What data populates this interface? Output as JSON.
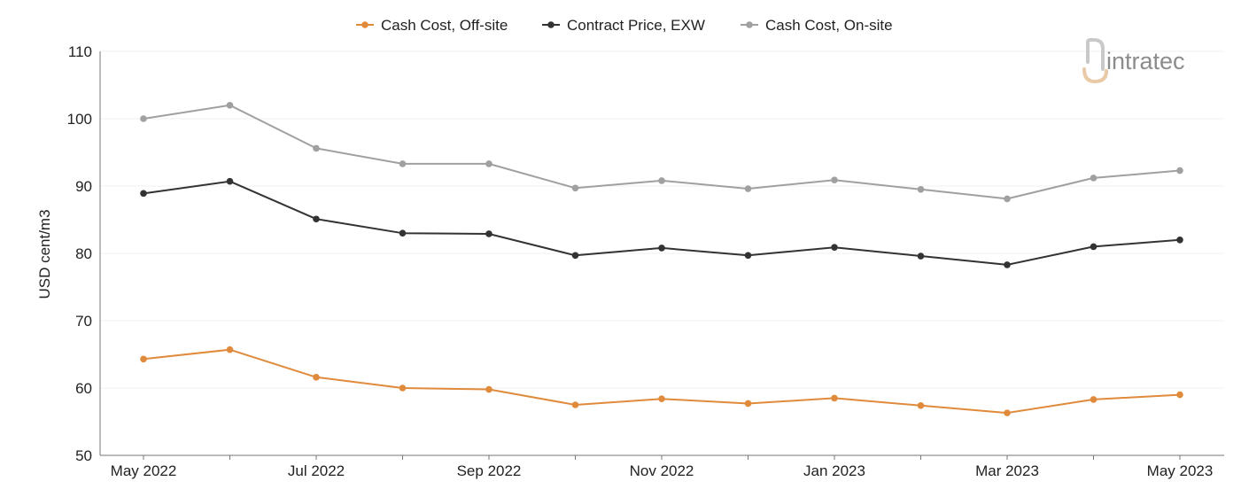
{
  "logo": {
    "text": "intratec"
  },
  "chart_data": {
    "type": "line",
    "ylabel": "USD cent/m3",
    "xlabel": "",
    "ylim": [
      50,
      110
    ],
    "yticks": [
      50,
      60,
      70,
      80,
      90,
      100,
      110
    ],
    "x": [
      "May 2022",
      "Jun 2022",
      "Jul 2022",
      "Aug 2022",
      "Sep 2022",
      "Oct 2022",
      "Nov 2022",
      "Dec 2022",
      "Jan 2023",
      "Feb 2023",
      "Mar 2023",
      "Apr 2023",
      "May 2023"
    ],
    "xtick_labels": [
      "May 2022",
      "",
      "Jul 2022",
      "",
      "Sep 2022",
      "",
      "Nov 2022",
      "",
      "Jan 2023",
      "",
      "Mar 2023",
      "",
      "May 2023"
    ],
    "grid": true,
    "legend_position": "top-center",
    "series": [
      {
        "name": "Cash Cost, Off-site",
        "color": "#e08a3c",
        "values": [
          64.3,
          65.7,
          61.6,
          60.0,
          59.8,
          57.5,
          58.4,
          57.7,
          58.5,
          57.4,
          56.3,
          58.3,
          59.0
        ]
      },
      {
        "name": "Contract Price, EXW",
        "color": "#333333",
        "values": [
          88.9,
          90.7,
          85.1,
          83.0,
          82.9,
          79.7,
          80.8,
          79.7,
          80.9,
          79.6,
          78.3,
          81.0,
          82.0
        ]
      },
      {
        "name": "Cash Cost, On-site",
        "color": "#a0a0a0",
        "values": [
          100.0,
          102.0,
          95.6,
          93.3,
          93.3,
          89.7,
          90.8,
          89.6,
          90.9,
          89.5,
          88.1,
          91.2,
          92.3
        ]
      }
    ]
  }
}
